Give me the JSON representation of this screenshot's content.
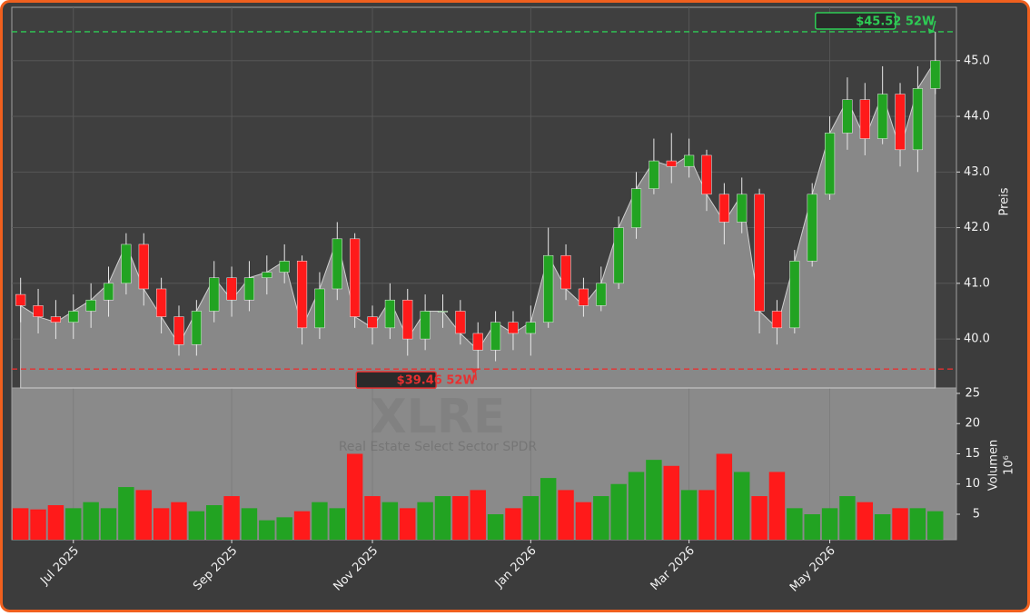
{
  "chart_data": {
    "type": "candlestick",
    "title": "XLRE",
    "subtitle": "Real Estate Select Sector SPDR",
    "categories": [
      null,
      null,
      null,
      "Jul 2025",
      null,
      null,
      null,
      null,
      null,
      null,
      null,
      null,
      "Sep 2025",
      null,
      null,
      null,
      null,
      null,
      null,
      null,
      "Nov 2025",
      null,
      null,
      null,
      null,
      null,
      null,
      null,
      null,
      "Jan 2026",
      null,
      null,
      null,
      null,
      null,
      null,
      null,
      null,
      "Mar 2026",
      null,
      null,
      null,
      null,
      null,
      null,
      null,
      "May 2026",
      null,
      null,
      null,
      null,
      null,
      null
    ],
    "open": [
      40.8,
      40.6,
      40.4,
      40.3,
      40.5,
      40.7,
      41.0,
      41.7,
      40.9,
      40.4,
      39.9,
      40.5,
      41.1,
      40.7,
      41.1,
      41.2,
      41.4,
      40.2,
      40.9,
      41.8,
      40.4,
      40.2,
      40.7,
      40.0,
      40.5,
      40.5,
      40.1,
      39.8,
      40.3,
      40.1,
      40.3,
      41.5,
      40.9,
      40.6,
      41.0,
      42.0,
      42.7,
      43.2,
      43.1,
      43.3,
      42.6,
      42.1,
      42.6,
      40.5,
      40.2,
      41.4,
      42.6,
      43.7,
      44.3,
      43.6,
      44.4,
      43.4,
      44.5
    ],
    "high": [
      41.1,
      40.9,
      40.7,
      40.8,
      41.0,
      41.3,
      41.9,
      41.9,
      41.1,
      40.6,
      40.7,
      41.4,
      41.3,
      41.4,
      41.5,
      41.7,
      41.5,
      41.2,
      42.1,
      41.9,
      40.6,
      41.0,
      40.9,
      40.8,
      40.8,
      40.7,
      40.3,
      40.5,
      40.5,
      40.6,
      42.0,
      41.7,
      41.1,
      41.3,
      42.2,
      43.0,
      43.6,
      43.7,
      43.6,
      43.4,
      42.8,
      42.9,
      42.7,
      40.7,
      41.6,
      42.8,
      44.0,
      44.7,
      44.6,
      44.9,
      44.6,
      44.9,
      45.52
    ],
    "low": [
      40.3,
      40.1,
      40.0,
      40.0,
      40.2,
      40.4,
      40.8,
      40.6,
      40.1,
      39.7,
      39.7,
      40.3,
      40.4,
      40.5,
      40.8,
      41.0,
      39.9,
      40.0,
      40.7,
      40.2,
      39.9,
      40.0,
      39.7,
      39.8,
      40.2,
      39.9,
      39.46,
      39.6,
      39.8,
      39.7,
      40.2,
      40.7,
      40.4,
      40.5,
      40.9,
      41.8,
      42.6,
      42.8,
      42.9,
      42.3,
      41.7,
      41.9,
      40.1,
      39.9,
      40.1,
      41.3,
      42.5,
      43.4,
      43.3,
      43.5,
      43.1,
      43.0,
      44.4
    ],
    "close": [
      40.6,
      40.4,
      40.3,
      40.5,
      40.7,
      41.0,
      41.7,
      40.9,
      40.4,
      39.9,
      40.5,
      41.1,
      40.7,
      41.1,
      41.2,
      41.4,
      40.2,
      40.9,
      41.8,
      40.4,
      40.2,
      40.7,
      40.0,
      40.5,
      40.5,
      40.1,
      39.8,
      40.3,
      40.1,
      40.3,
      41.5,
      40.9,
      40.6,
      41.0,
      42.0,
      42.7,
      43.2,
      43.1,
      43.3,
      42.6,
      42.1,
      42.6,
      40.5,
      40.2,
      41.4,
      42.6,
      43.7,
      44.3,
      43.6,
      44.4,
      43.4,
      44.5,
      45.0
    ],
    "volume": [
      6,
      5.8,
      6.5,
      6,
      7,
      6,
      9.5,
      9,
      6,
      7,
      5.5,
      6.5,
      8,
      6,
      4,
      4.5,
      5.5,
      7,
      6,
      15,
      8,
      7,
      6,
      7,
      8,
      8,
      9,
      5,
      6,
      8,
      11,
      9,
      7,
      8,
      10,
      12,
      14,
      13,
      9,
      9,
      15,
      12,
      8,
      12,
      6,
      5,
      6,
      8,
      7,
      5,
      6,
      6,
      5.5
    ],
    "up_color": "#22a322",
    "down_color": "#ff1a1a",
    "area_color": "#888888",
    "ylabel": "Preis",
    "ylim": [
      39.12,
      45.96
    ],
    "yticks": [
      {
        "value": 40,
        "label": "40.0"
      },
      {
        "value": 41,
        "label": "41.0"
      },
      {
        "value": 42,
        "label": "42.0"
      },
      {
        "value": 43,
        "label": "43.0"
      },
      {
        "value": 44,
        "label": "44.0"
      },
      {
        "value": 45,
        "label": "45.0"
      }
    ],
    "volume_label": "Volumen",
    "volume_unit": "10⁶",
    "volume_ylim": [
      0.79,
      25.9
    ],
    "volume_yticks": [
      5,
      10,
      15,
      20,
      25
    ],
    "hlines": [
      {
        "value": 45.52,
        "label": "$45.52 52W",
        "color": "#2ecc55",
        "target": "high"
      },
      {
        "value": 39.46,
        "label": "$39.46 52W",
        "color": "#e83030",
        "target": "low"
      }
    ],
    "grid": true
  }
}
